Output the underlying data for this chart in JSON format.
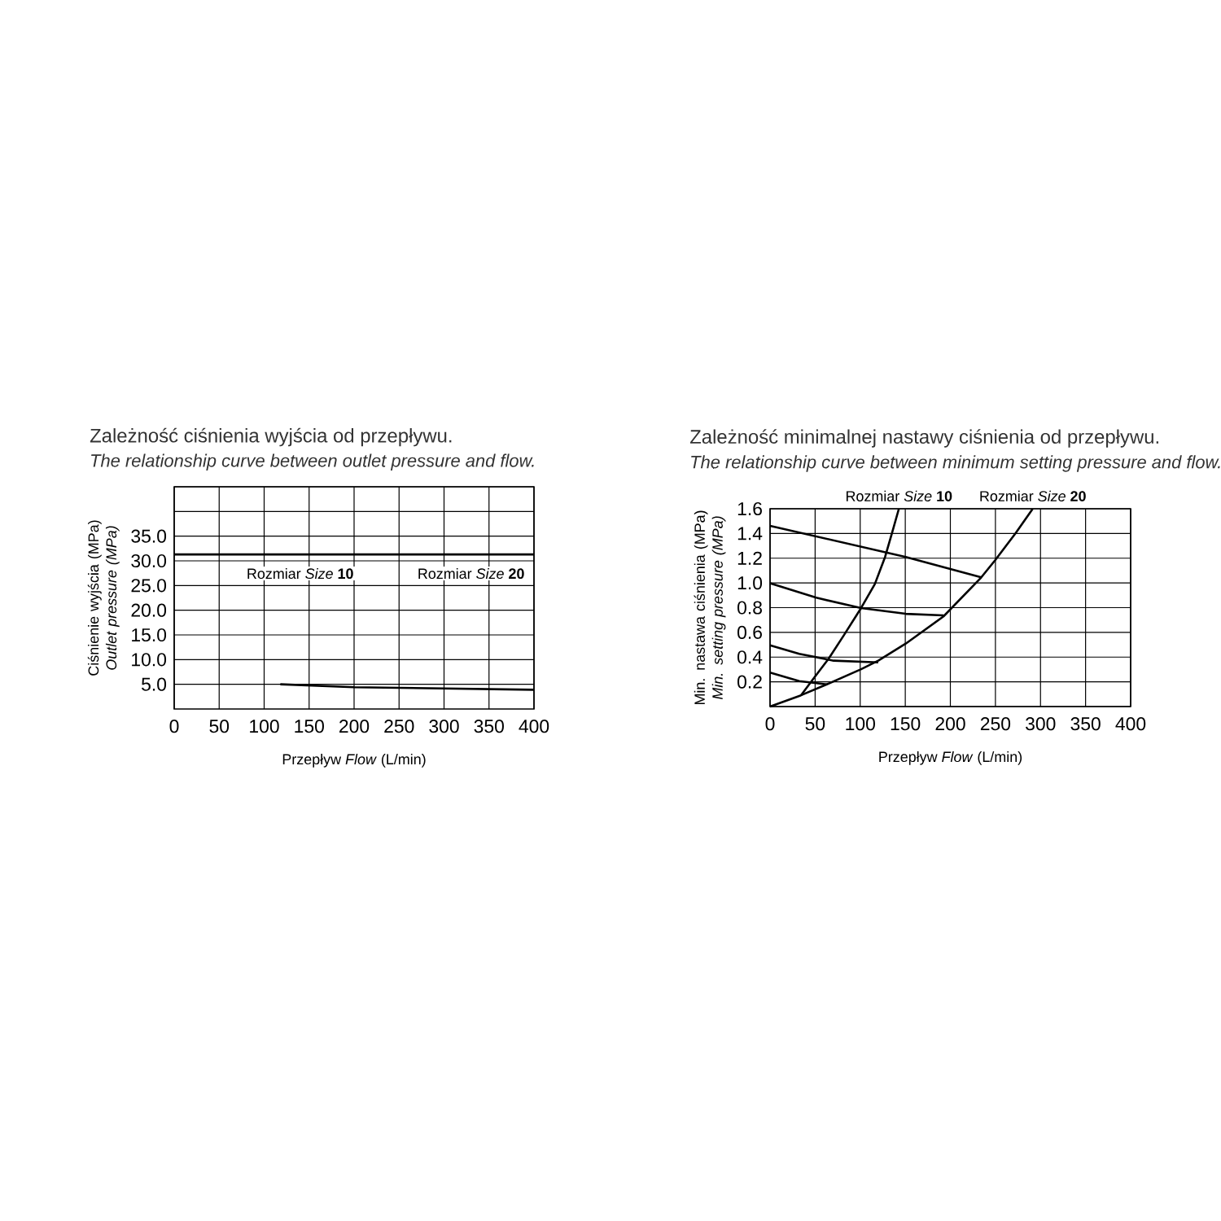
{
  "chart_data": [
    {
      "type": "line",
      "title": "Zależność ciśnienia wyjścia od przepływu.",
      "subtitle": "The relationship curve between outlet pressure and flow.",
      "xlabel": "Przepływ *Flow* (L/min)",
      "ylabel": "Ciśnienie wyjścia (MPa) *Outlet pressure (MPa)*",
      "xlim": [
        0,
        400
      ],
      "xticks": [
        0,
        50,
        100,
        150,
        200,
        250,
        300,
        350,
        400
      ],
      "ylim": [
        0,
        45
      ],
      "yticks": [
        {
          "value": 5,
          "label": "5.0"
        },
        {
          "value": 10,
          "label": "10.0"
        },
        {
          "value": 15,
          "label": "15.0"
        },
        {
          "value": 20,
          "label": "20.0"
        },
        {
          "value": 25,
          "label": "25.0"
        },
        {
          "value": 30,
          "label": "30.0"
        },
        {
          "value": 35,
          "label": "35.0"
        },
        {
          "value": 40,
          "label": null
        },
        {
          "value": 45,
          "label": null
        }
      ],
      "grid": true,
      "series": [
        {
          "color": "#000000",
          "x": [
            0,
            400
          ],
          "values": [
            31.3,
            31.3
          ]
        },
        {
          "color": "#000000",
          "x": [
            118,
            200,
            400
          ],
          "values": [
            5.0,
            4.4,
            3.9
          ]
        }
      ],
      "annotations": [
        "Rozmiar *Size* **10**",
        "Rozmiar *Size* **20**"
      ]
    },
    {
      "type": "line",
      "title": "Zależność minimalnej nastawy ciśnienia od przepływu.",
      "subtitle": "The relationship curve between minimum setting pressure and flow.",
      "xlabel": "Przepływ *Flow* (L/min)",
      "ylabel": "Min. nastawa ciśnienia (MPa) *Min. setting pressure (MPa)*",
      "xlim": [
        0,
        400
      ],
      "xticks": [
        0,
        50,
        100,
        150,
        200,
        250,
        300,
        350,
        400
      ],
      "ylim": [
        0,
        1.6
      ],
      "yticks": [
        {
          "value": 0,
          "label": null
        },
        0.2,
        0.4,
        0.6,
        0.8,
        {
          "value": 1,
          "label": "1.0"
        },
        1.2,
        1.4,
        1.6
      ],
      "grid": true,
      "series": [
        {
          "color": "#000000",
          "x": [
            34.3,
            47.6,
            64.8,
            81.9,
            101.0,
            116.2,
            127.6,
            135.2,
            142.9
          ],
          "values": [
            0.091,
            0.22,
            0.385,
            0.577,
            0.797,
            0.99,
            1.21,
            1.402,
            1.6
          ]
        },
        {
          "color": "#000000",
          "x": [
            0,
            34.3,
            62.9,
            101.0,
            120.0,
            150.5,
            192.4,
            234.3,
            249.5,
            272.4,
            291.4
          ],
          "values": [
            0,
            0.091,
            0.179,
            0.302,
            0.371,
            0.509,
            0.729,
            1.045,
            1.182,
            1.402,
            1.6
          ]
        },
        {
          "color": "#000000",
          "x": [
            0,
            150.5,
            234.3
          ],
          "values": [
            1.462,
            1.21,
            1.045
          ]
        },
        {
          "color": "#000000",
          "x": [
            0,
            51.4,
            101.0,
            150.5,
            192.4
          ],
          "values": [
            0.998,
            0.88,
            0.797,
            0.75,
            0.737
          ]
        },
        {
          "color": "#000000",
          "x": [
            0,
            32.4,
            70.5,
            120.0
          ],
          "values": [
            0.495,
            0.426,
            0.371,
            0.357
          ]
        },
        {
          "color": "#000000",
          "x": [
            0,
            32.4,
            62.9
          ],
          "values": [
            0.275,
            0.206,
            0.179
          ]
        }
      ],
      "annotations": [
        {
          "text": "Rozmiar *Size* **10**",
          "x": 142.9,
          "y": 1.6
        },
        {
          "text": "Rozmiar *Size* **20**",
          "x": 291.4,
          "y": 1.6
        }
      ]
    }
  ]
}
